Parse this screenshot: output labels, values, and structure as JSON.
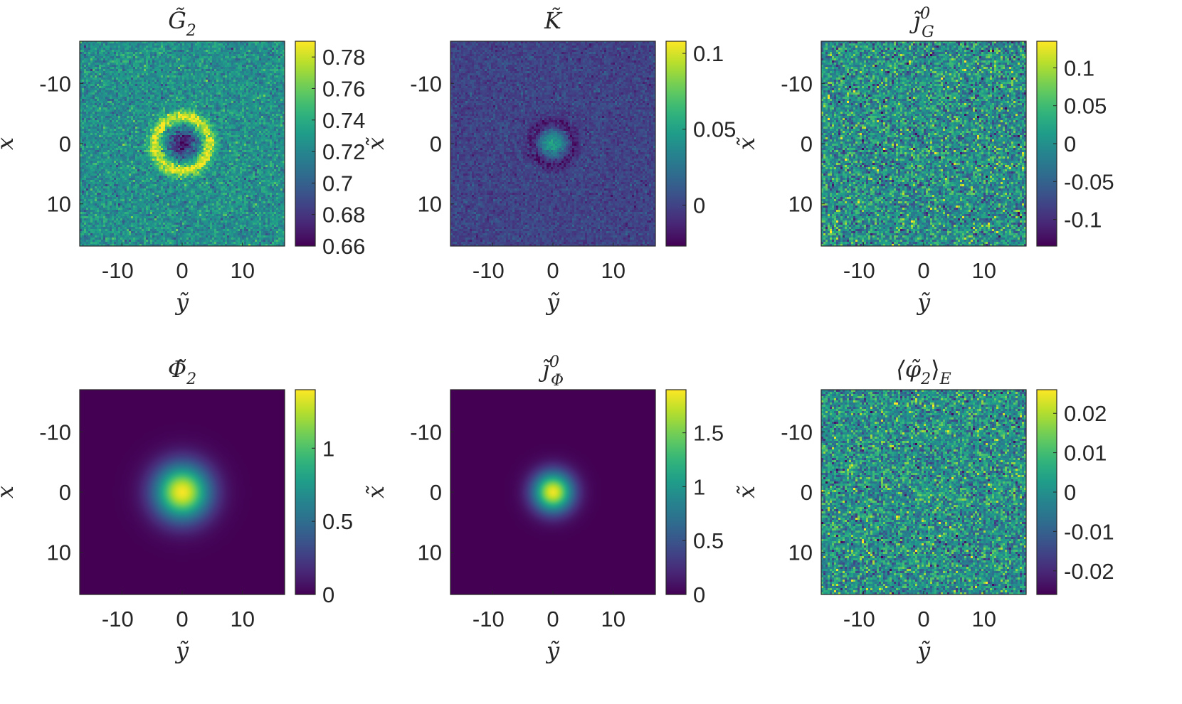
{
  "chart_data": [
    {
      "type": "heatmap",
      "title": "G̃₂",
      "title_parts": {
        "base": "G",
        "sub": "2",
        "sup": ""
      },
      "xlabel": "ỹ",
      "ylabel": "x̃",
      "xlim": [
        -17,
        17
      ],
      "ylim": [
        -17,
        17
      ],
      "xticks": [
        "-10",
        "0",
        "10"
      ],
      "yticks": [
        "-10",
        "0",
        "10"
      ],
      "pattern": "ring",
      "field": {
        "background": 0.725,
        "center": 0.665,
        "ring_peak": 0.785,
        "ring_radius": 4.5,
        "noise": 0.012
      },
      "colorbar": {
        "min": 0.66,
        "max": 0.79,
        "ticks": [
          "0.66",
          "0.68",
          "0.7",
          "0.72",
          "0.74",
          "0.76",
          "0.78"
        ],
        "tick_values": [
          0.66,
          0.68,
          0.7,
          0.72,
          0.74,
          0.76,
          0.78
        ]
      }
    },
    {
      "type": "heatmap",
      "title": "K̃",
      "title_parts": {
        "base": "K",
        "sub": "",
        "sup": ""
      },
      "xlabel": "ỹ",
      "ylabel": "x̃",
      "xlim": [
        -17,
        17
      ],
      "ylim": [
        -17,
        17
      ],
      "xticks": [
        "-10",
        "0",
        "10"
      ],
      "yticks": [
        "-10",
        "0",
        "10"
      ],
      "pattern": "spot_dark_ring",
      "field": {
        "background": 0.0,
        "center": 0.05,
        "ring_low": -0.02,
        "ring_radius": 3.5,
        "noise": 0.006
      },
      "colorbar": {
        "min": -0.027,
        "max": 0.108,
        "ticks": [
          "0",
          "0.05",
          "0.1"
        ],
        "tick_values": [
          0.0,
          0.05,
          0.1
        ]
      }
    },
    {
      "type": "heatmap",
      "title": "j̃⁰_G",
      "title_parts": {
        "base": "j",
        "sub": "G",
        "sup": "0"
      },
      "xlabel": "ỹ",
      "ylabel": "x̃",
      "xlim": [
        -17,
        17
      ],
      "ylim": [
        -17,
        17
      ],
      "xticks": [
        "-10",
        "0",
        "10"
      ],
      "yticks": [
        "-10",
        "0",
        "10"
      ],
      "pattern": "noise",
      "field": {
        "background": 0.0,
        "noise": 0.045
      },
      "colorbar": {
        "min": -0.135,
        "max": 0.135,
        "ticks": [
          "0.1",
          "0.05",
          "0",
          "-0.05",
          "-0.1"
        ],
        "tick_values": [
          0.1,
          0.05,
          0.0,
          -0.05,
          -0.1
        ]
      }
    },
    {
      "type": "heatmap",
      "title": "Φ̃₂",
      "title_parts": {
        "base": "Φ",
        "sub": "2",
        "sup": ""
      },
      "xlabel": "ỹ",
      "ylabel": "x̃",
      "xlim": [
        -17,
        17
      ],
      "ylim": [
        -17,
        17
      ],
      "xticks": [
        "-10",
        "0",
        "10"
      ],
      "yticks": [
        "-10",
        "0",
        "10"
      ],
      "pattern": "gaussian",
      "field": {
        "peak": 1.38,
        "sigma": 3.2
      },
      "colorbar": {
        "min": 0.0,
        "max": 1.4,
        "ticks": [
          "0",
          "0.5",
          "1"
        ],
        "tick_values": [
          0.0,
          0.5,
          1.0
        ]
      }
    },
    {
      "type": "heatmap",
      "title": "j̃⁰_Φ",
      "title_parts": {
        "base": "j",
        "sub": "Φ",
        "sup": "0"
      },
      "xlabel": "ỹ",
      "ylabel": "x̃",
      "xlim": [
        -17,
        17
      ],
      "ylim": [
        -17,
        17
      ],
      "xticks": [
        "-10",
        "0",
        "10"
      ],
      "yticks": [
        "-10",
        "0",
        "10"
      ],
      "pattern": "gaussian",
      "field": {
        "peak": 1.85,
        "sigma": 2.3
      },
      "colorbar": {
        "min": 0.0,
        "max": 1.9,
        "ticks": [
          "0",
          "0.5",
          "1",
          "1.5"
        ],
        "tick_values": [
          0.0,
          0.5,
          1.0,
          1.5
        ]
      }
    },
    {
      "type": "heatmap",
      "title": "⟨φ̃₂⟩_E",
      "title_parts": {
        "base": "⟨φ",
        "sub": "2",
        "sup": "",
        "suffix": "⟩",
        "suffix_sub": "E"
      },
      "xlabel": "ỹ",
      "ylabel": "x̃",
      "xlim": [
        -17,
        17
      ],
      "ylim": [
        -17,
        17
      ],
      "xticks": [
        "-10",
        "0",
        "10"
      ],
      "yticks": [
        "-10",
        "0",
        "10"
      ],
      "pattern": "noise",
      "field": {
        "background": 0.0,
        "noise": 0.0085
      },
      "colorbar": {
        "min": -0.026,
        "max": 0.026,
        "ticks": [
          "0.02",
          "0.01",
          "0",
          "-0.01",
          "-0.02"
        ],
        "tick_values": [
          0.02,
          0.01,
          0.0,
          -0.01,
          -0.02
        ]
      }
    }
  ]
}
